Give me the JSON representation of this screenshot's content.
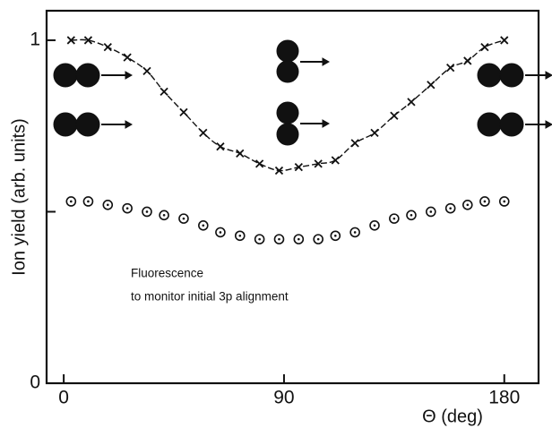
{
  "chart_data": {
    "type": "scatter",
    "ylabel": "Ion yield (arb. units)",
    "xlabel": "Θ (deg)",
    "annotation": [
      "Fluorescence",
      "to monitor initial 3p alignment"
    ],
    "x": [
      3,
      10,
      18,
      26,
      34,
      41,
      49,
      57,
      64,
      72,
      80,
      88,
      96,
      104,
      111,
      119,
      127,
      135,
      142,
      150,
      158,
      165,
      172,
      180
    ],
    "series": [
      {
        "color": "#111111",
        "marker": "x",
        "line": "dashed",
        "values": [
          1.0,
          1.0,
          0.98,
          0.95,
          0.91,
          0.85,
          0.79,
          0.73,
          0.69,
          0.67,
          0.64,
          0.62,
          0.63,
          0.64,
          0.65,
          0.7,
          0.73,
          0.78,
          0.82,
          0.87,
          0.92,
          0.94,
          0.98,
          1.0
        ]
      },
      {
        "color": "#111111",
        "marker": "circle",
        "values": [
          0.53,
          0.53,
          0.52,
          0.51,
          0.5,
          0.49,
          0.48,
          0.46,
          0.44,
          0.43,
          0.42,
          0.42,
          0.42,
          0.42,
          0.43,
          0.44,
          0.46,
          0.48,
          0.49,
          0.5,
          0.51,
          0.52,
          0.53,
          0.53
        ]
      }
    ],
    "xlim": [
      -7,
      194
    ],
    "ylim": [
      0,
      1.086
    ],
    "xticks": [
      0,
      90,
      180
    ],
    "yticks": [
      0,
      1
    ],
    "yminorticks": [
      0.5
    ]
  }
}
